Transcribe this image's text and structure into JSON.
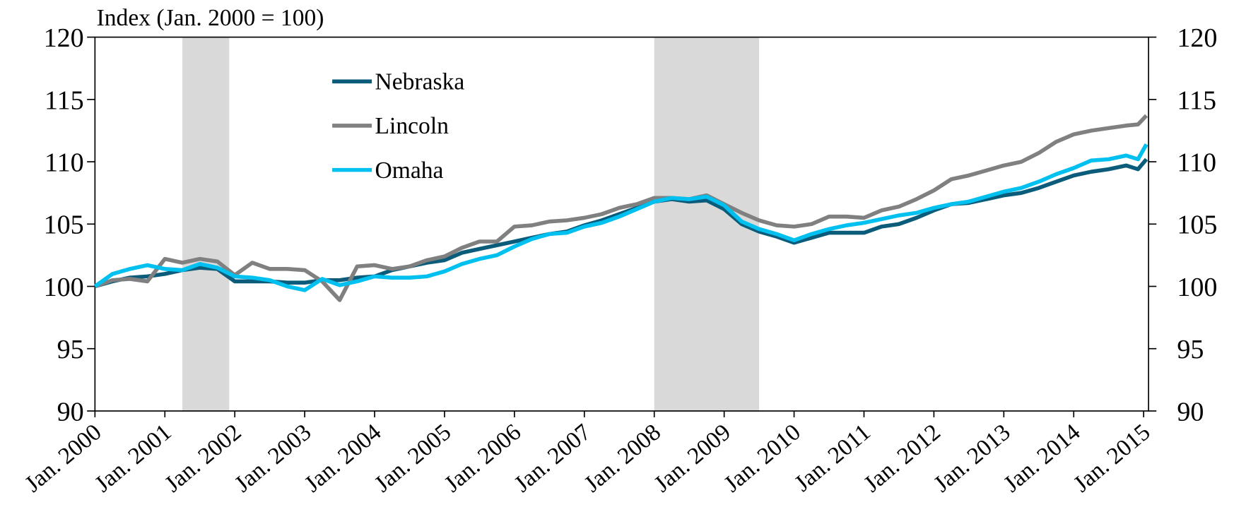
{
  "chart_data": {
    "type": "line",
    "ylabel": "Index (Jan. 2000 = 100)",
    "x": [
      2000,
      2000.25,
      2000.5,
      2000.75,
      2001,
      2001.25,
      2001.5,
      2001.75,
      2002,
      2002.25,
      2002.5,
      2002.75,
      2003,
      2003.25,
      2003.5,
      2003.75,
      2004,
      2004.25,
      2004.5,
      2004.75,
      2005,
      2005.25,
      2005.5,
      2005.75,
      2006,
      2006.25,
      2006.5,
      2006.75,
      2007,
      2007.25,
      2007.5,
      2007.75,
      2008,
      2008.25,
      2008.5,
      2008.75,
      2009,
      2009.25,
      2009.5,
      2009.75,
      2010,
      2010.25,
      2010.5,
      2010.75,
      2011,
      2011.25,
      2011.5,
      2011.75,
      2012,
      2012.25,
      2012.5,
      2012.75,
      2013,
      2013.25,
      2013.5,
      2013.75,
      2014,
      2014.25,
      2014.5,
      2014.75,
      2014.92,
      2015.04
    ],
    "series": [
      {
        "name": "Nebraska",
        "color": "#0b5c7a",
        "values": [
          100,
          100.4,
          100.7,
          100.8,
          101.0,
          101.3,
          101.5,
          101.4,
          100.4,
          100.4,
          100.4,
          100.3,
          100.3,
          100.5,
          100.5,
          100.7,
          100.8,
          101.3,
          101.6,
          101.9,
          102.1,
          102.7,
          103.0,
          103.3,
          103.6,
          103.9,
          104.2,
          104.4,
          104.9,
          105.3,
          105.8,
          106.3,
          106.8,
          107.0,
          106.8,
          106.9,
          106.2,
          105.0,
          104.4,
          104.0,
          103.5,
          103.9,
          104.3,
          104.3,
          104.3,
          104.8,
          105.0,
          105.5,
          106.1,
          106.6,
          106.7,
          107.0,
          107.3,
          107.5,
          107.9,
          108.4,
          108.9,
          109.2,
          109.4,
          109.7,
          109.4,
          110.2
        ]
      },
      {
        "name": "Lincoln",
        "color": "#808080",
        "values": [
          100,
          100.5,
          100.6,
          100.4,
          102.2,
          101.9,
          102.2,
          102.0,
          100.9,
          101.9,
          101.4,
          101.4,
          101.3,
          100.4,
          98.9,
          101.6,
          101.7,
          101.4,
          101.6,
          102.1,
          102.4,
          103.1,
          103.6,
          103.6,
          104.8,
          104.9,
          105.2,
          105.3,
          105.5,
          105.8,
          106.3,
          106.6,
          107.1,
          107.1,
          107.0,
          107.3,
          106.6,
          105.9,
          105.3,
          104.9,
          104.8,
          105.0,
          105.6,
          105.6,
          105.5,
          106.1,
          106.4,
          107.0,
          107.7,
          108.6,
          108.9,
          109.3,
          109.7,
          110.0,
          110.7,
          111.6,
          112.2,
          112.5,
          112.7,
          112.9,
          113.0,
          113.7
        ]
      },
      {
        "name": "Omaha",
        "color": "#00c0f0",
        "values": [
          100,
          101.0,
          101.4,
          101.7,
          101.4,
          101.3,
          101.8,
          101.5,
          100.8,
          100.7,
          100.5,
          100.0,
          99.7,
          100.6,
          100.1,
          100.4,
          100.8,
          100.7,
          100.7,
          100.8,
          101.2,
          101.8,
          102.2,
          102.5,
          103.2,
          103.8,
          104.2,
          104.3,
          104.8,
          105.1,
          105.6,
          106.2,
          106.8,
          107.1,
          107.0,
          107.2,
          106.5,
          105.2,
          104.6,
          104.2,
          103.7,
          104.2,
          104.6,
          104.9,
          105.1,
          105.4,
          105.7,
          105.9,
          106.3,
          106.6,
          106.8,
          107.2,
          107.6,
          107.9,
          108.4,
          109.0,
          109.5,
          110.1,
          110.2,
          110.5,
          110.2,
          111.4
        ]
      }
    ],
    "recessions": [
      [
        2001.25,
        2001.92
      ],
      [
        2008.0,
        2009.5
      ]
    ],
    "recession_color": "#d9d9d9",
    "xlim": [
      2000,
      2015.07
    ],
    "xticks": [
      {
        "value": 2000,
        "label": "Jan. 2000"
      },
      {
        "value": 2001,
        "label": "Jan. 2001"
      },
      {
        "value": 2002,
        "label": "Jan. 2002"
      },
      {
        "value": 2003,
        "label": "Jan. 2003"
      },
      {
        "value": 2004,
        "label": "Jan. 2004"
      },
      {
        "value": 2005,
        "label": "Jan. 2005"
      },
      {
        "value": 2006,
        "label": "Jan. 2006"
      },
      {
        "value": 2007,
        "label": "Jan. 2007"
      },
      {
        "value": 2008,
        "label": "Jan. 2008"
      },
      {
        "value": 2009,
        "label": "Jan. 2009"
      },
      {
        "value": 2010,
        "label": "Jan. 2010"
      },
      {
        "value": 2011,
        "label": "Jan. 2011"
      },
      {
        "value": 2012,
        "label": "Jan. 2012"
      },
      {
        "value": 2013,
        "label": "Jan. 2013"
      },
      {
        "value": 2014,
        "label": "Jan. 2014"
      },
      {
        "value": 2015,
        "label": "Jan. 2015"
      }
    ],
    "ylim": [
      90,
      120
    ],
    "yticks": [
      90,
      95,
      100,
      105,
      110,
      115,
      120
    ],
    "y2lim": [
      90,
      120
    ],
    "y2ticks": [
      90,
      95,
      100,
      105,
      110,
      115,
      120
    ],
    "legend": "upper left",
    "grid": false
  }
}
